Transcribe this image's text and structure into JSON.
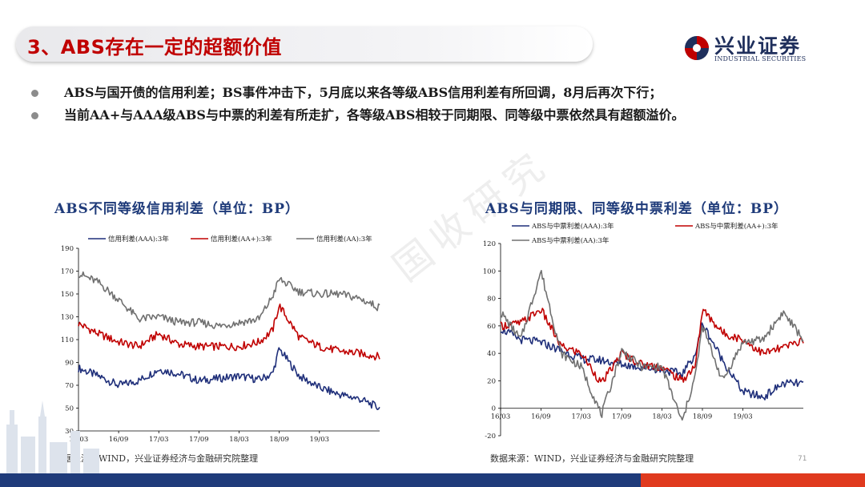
{
  "header": {
    "title": "3、ABS存在一定的超额价值",
    "logo_cn": "兴业证券",
    "logo_en": "INDUSTRIAL SECURITIES"
  },
  "bullets": [
    "ABS与国开债的信用利差；BS事件冲击下，5月底以来各等级ABS信用利差有所回调，8月后再次下行；",
    "当前AA+与AAA级ABS与中票的利差有所走扩，各等级ABS相较于同期限、同等级中票依然具有超额溢价。"
  ],
  "watermark": "国收研究",
  "page_number": "71",
  "colors": {
    "navy": "#1f2f7a",
    "red": "#c00000",
    "gray": "#707070",
    "title_red": "#c00000",
    "title_blue": "#1f3b7a"
  },
  "chart_data": [
    {
      "type": "line",
      "title": "ABS不同等级信用利差（单位：BP）",
      "source": "数据来源：WIND，兴业证券经济与金融研究院整理",
      "x_ticks": [
        "16/03",
        "16/09",
        "17/03",
        "17/09",
        "18/03",
        "18/09",
        "19/03"
      ],
      "x_range": [
        "16/03",
        "19/12"
      ],
      "y_ticks": [
        30,
        50,
        70,
        90,
        110,
        130,
        150,
        170,
        190
      ],
      "ylim": [
        30,
        190
      ],
      "legend_position": "top",
      "grid": false,
      "series": [
        {
          "name": "信用利差(AAA):3年",
          "color": "#1f2f7a",
          "x": [
            "16/03",
            "16/06",
            "16/09",
            "16/12",
            "17/03",
            "17/06",
            "17/09",
            "17/12",
            "18/03",
            "18/06",
            "18/08",
            "18/09",
            "18/12",
            "19/03",
            "19/06",
            "19/09",
            "19/12"
          ],
          "values": [
            85,
            78,
            70,
            74,
            84,
            80,
            74,
            76,
            78,
            75,
            80,
            102,
            78,
            68,
            62,
            58,
            50
          ]
        },
        {
          "name": "信用利差(AA+):3年",
          "color": "#c00000",
          "x": [
            "16/03",
            "16/06",
            "16/09",
            "16/12",
            "17/03",
            "17/06",
            "17/09",
            "17/12",
            "18/03",
            "18/06",
            "18/08",
            "18/09",
            "18/12",
            "19/03",
            "19/06",
            "19/09",
            "19/12"
          ],
          "values": [
            124,
            115,
            108,
            104,
            115,
            106,
            104,
            104,
            104,
            108,
            118,
            140,
            112,
            104,
            100,
            98,
            95
          ]
        },
        {
          "name": "信用利差(AA):3年",
          "color": "#707070",
          "x": [
            "16/03",
            "16/06",
            "16/09",
            "16/12",
            "17/03",
            "17/06",
            "17/09",
            "17/12",
            "18/03",
            "18/06",
            "18/08",
            "18/09",
            "18/12",
            "19/03",
            "19/06",
            "19/09",
            "19/12"
          ],
          "values": [
            168,
            160,
            145,
            128,
            130,
            125,
            125,
            122,
            125,
            128,
            148,
            163,
            152,
            150,
            150,
            146,
            138
          ]
        }
      ]
    },
    {
      "type": "line",
      "title": "ABS与同期限、同等级中票利差（单位：BP）",
      "source": "数据来源：WIND，兴业证券经济与金融研究院整理",
      "x_ticks": [
        "16/03",
        "16/09",
        "17/03",
        "17/09",
        "18/03",
        "18/09",
        "19/03"
      ],
      "x_range": [
        "16/03",
        "19/12"
      ],
      "y_ticks": [
        -20,
        0,
        20,
        40,
        60,
        80,
        100,
        120
      ],
      "ylim": [
        -20,
        120
      ],
      "legend_position": "top",
      "grid": false,
      "series": [
        {
          "name": "ABS与中票利差(AAA):3年",
          "color": "#1f2f7a",
          "x": [
            "16/03",
            "16/06",
            "16/09",
            "16/12",
            "17/03",
            "17/06",
            "17/09",
            "17/12",
            "18/03",
            "18/06",
            "18/08",
            "18/09",
            "18/12",
            "19/03",
            "19/06",
            "19/09",
            "19/12"
          ],
          "values": [
            58,
            50,
            48,
            42,
            36,
            35,
            32,
            30,
            28,
            25,
            40,
            62,
            35,
            12,
            8,
            18,
            18
          ]
        },
        {
          "name": "ABS与中票利差(AA+):3年",
          "color": "#c00000",
          "x": [
            "16/03",
            "16/06",
            "16/09",
            "16/12",
            "17/03",
            "17/06",
            "17/09",
            "17/12",
            "18/03",
            "18/06",
            "18/08",
            "18/09",
            "18/12",
            "19/03",
            "19/06",
            "19/09",
            "19/12"
          ],
          "values": [
            60,
            62,
            72,
            45,
            40,
            18,
            40,
            32,
            30,
            20,
            32,
            72,
            55,
            50,
            40,
            44,
            50
          ]
        },
        {
          "name": "ABS与中票利差(AA):3年",
          "color": "#707070",
          "x": [
            "16/03",
            "16/06",
            "16/09",
            "16/12",
            "17/03",
            "17/06",
            "17/09",
            "17/12",
            "18/03",
            "18/06",
            "18/08",
            "18/09",
            "18/12",
            "19/03",
            "19/06",
            "19/09",
            "19/12"
          ],
          "values": [
            70,
            50,
            100,
            40,
            30,
            -5,
            42,
            30,
            30,
            -10,
            25,
            60,
            20,
            48,
            50,
            70,
            50
          ]
        }
      ]
    }
  ]
}
